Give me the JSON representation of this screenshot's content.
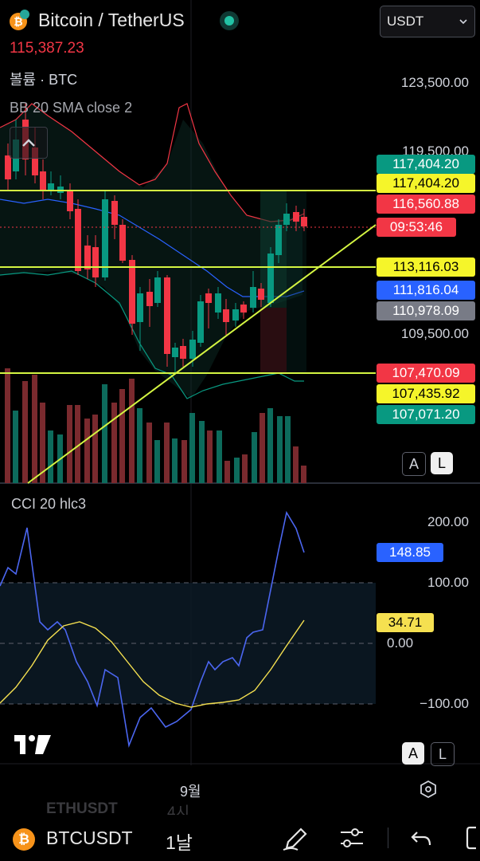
{
  "header": {
    "symbol_title": "Bitcoin / TetherUS",
    "last_price": "115,387.23",
    "volume_label": "볼륨 · BTC",
    "bb_label": "BB 20 SMA close 2",
    "currency_select": "USDT"
  },
  "price_axis": [
    "123,500.00",
    "119,500.00",
    "109,500.00"
  ],
  "price_tags": [
    {
      "text": "117,404.20",
      "bg": "#089981",
      "fg": "#ffffff"
    },
    {
      "text": "117,404.20",
      "bg": "#f5f52a",
      "fg": "#000000"
    },
    {
      "text": "116,560.88",
      "bg": "#f23645",
      "fg": "#ffffff"
    },
    {
      "text": "09:53:46",
      "bg": "#f23645",
      "fg": "#ffffff"
    },
    {
      "text": "113,116.03",
      "bg": "#f5f52a",
      "fg": "#000000"
    },
    {
      "text": "111,816.04",
      "bg": "#2962ff",
      "fg": "#ffffff"
    },
    {
      "text": "110,978.09",
      "bg": "#787b86",
      "fg": "#ffffff"
    },
    {
      "text": "107,470.09",
      "bg": "#f23645",
      "fg": "#ffffff"
    },
    {
      "text": "107,435.92",
      "bg": "#f5f52a",
      "fg": "#000000"
    },
    {
      "text": "107,071.20",
      "bg": "#089981",
      "fg": "#ffffff"
    }
  ],
  "scale_buttons": {
    "auto": "A",
    "log": "L"
  },
  "cci": {
    "label": "CCI 20 hlc3",
    "axis": [
      "200.00",
      "100.00",
      "0.00",
      "−100.00"
    ],
    "value_tag": "148.85",
    "ma_tag": "34.71"
  },
  "time_axis": {
    "label": "9월"
  },
  "bottom_bar": {
    "symbol": "BTCUSDT",
    "interval": "1날",
    "faded_symbol": "ETHUSDT",
    "faded_interval": "4시"
  },
  "colors": {
    "up": "#089981",
    "down": "#f23645",
    "bb_upper": "#f23645",
    "bb_basis": "#2962ff",
    "bb_lower": "#089981",
    "trendline": "#d4f542",
    "cci_line": "#4b66f0",
    "cci_ma": "#f5e050"
  },
  "icons": {
    "bitcoin": "bitcoin-icon",
    "live": "live-dot-icon",
    "collapse": "chevron-up-icon",
    "logo": "tradingview-logo",
    "settings": "hexagon-settings-icon",
    "draw": "pen-icon",
    "indicators": "sliders-icon",
    "undo": "undo-icon"
  }
}
